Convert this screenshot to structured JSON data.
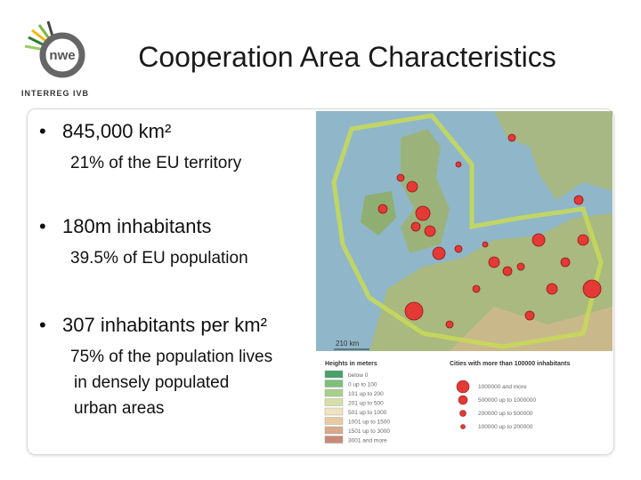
{
  "header": {
    "title": "Cooperation Area Characteristics",
    "logo_text": "nwe",
    "logo_caption": "INTERREG IVB"
  },
  "bullets": [
    {
      "text": "845,000 km²",
      "details": [
        "21% of the EU territory"
      ]
    },
    {
      "text": "180m inhabitants",
      "details": [
        "39.5% of EU population"
      ]
    },
    {
      "text": "307 inhabitants per km²",
      "details": [
        "75% of the population lives",
        "in densely populated",
        "urban areas"
      ]
    }
  ],
  "map": {
    "scale": "210 km",
    "heights_legend": {
      "title": "Heights in meters",
      "items": [
        "below 0",
        "0 up to 100",
        "101 up to 200",
        "201 up to 500",
        "501 up to 1000",
        "1001 up to 1500",
        "1501 up to 3000",
        "3001 and more"
      ]
    },
    "cities_legend": {
      "title": "Cities with more than 100000 inhabitants",
      "items": [
        "1000000 and more",
        "500000 up to 1000000",
        "200000 up to 500000",
        "100000 up to 200000"
      ]
    }
  }
}
